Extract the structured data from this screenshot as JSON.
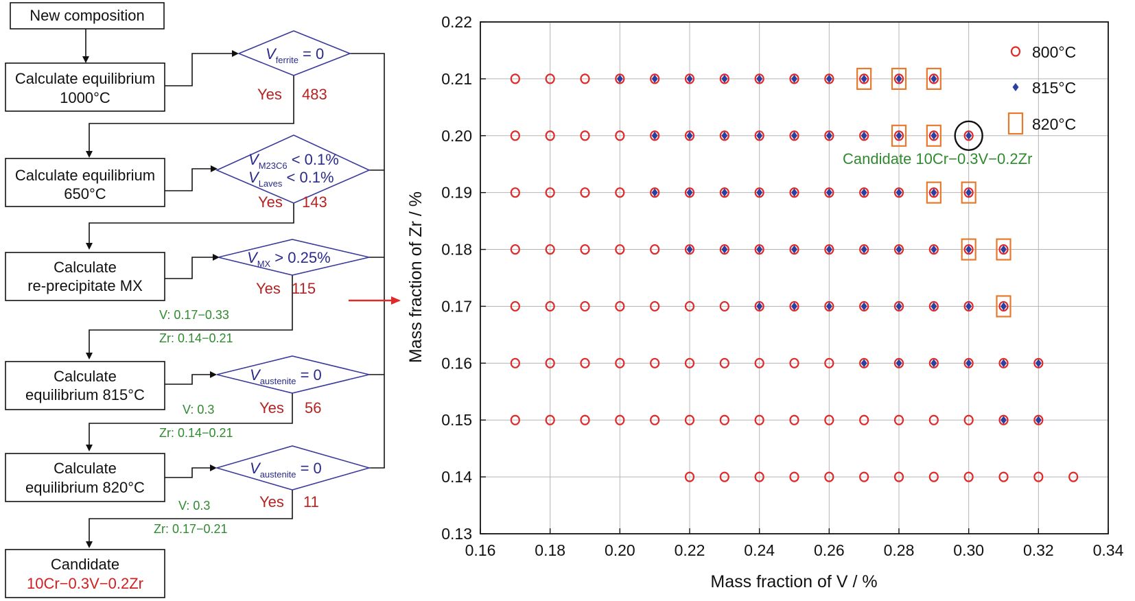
{
  "flowchart": {
    "start": "New composition",
    "steps": [
      {
        "lines": [
          "Calculate equilibrium",
          "1000°C"
        ]
      },
      {
        "lines": [
          "Calculate equilibrium",
          "650°C"
        ]
      },
      {
        "lines": [
          "Calculate",
          "re-precipitate MX"
        ]
      },
      {
        "lines": [
          "Calculate",
          "equilibrium 815°C"
        ]
      },
      {
        "lines": [
          "Calculate",
          "equilibrium 820°C"
        ]
      }
    ],
    "decisions": [
      {
        "var": "V",
        "sub": "ferrite",
        "cond": " = 0",
        "yes": "Yes",
        "count": "483"
      },
      {
        "var": "V",
        "sub": "M23C6",
        "cond": " < 0.1%",
        "var2": "V",
        "sub2": "Laves",
        "cond2": " < 0.1%",
        "yes": "Yes",
        "count": "143"
      },
      {
        "var": "V",
        "sub": "MX",
        "cond": " > 0.25%",
        "yes": "Yes",
        "count": "115"
      },
      {
        "var": "V",
        "sub": "austenite",
        "cond": " = 0",
        "yes": "Yes",
        "count": "56"
      },
      {
        "var": "V",
        "sub": "austenite",
        "cond": " = 0",
        "yes": "Yes",
        "count": "11"
      }
    ],
    "ranges": [
      {
        "v": "V: 0.17−0.33",
        "zr": "Zr: 0.14−0.21"
      },
      {
        "v": "V: 0.3",
        "zr": "Zr: 0.14−0.21"
      },
      {
        "v": "V: 0.3",
        "zr": "Zr: 0.17−0.21"
      }
    ],
    "candidate": {
      "label": "Candidate",
      "composition": "10Cr−0.3V−0.2Zr"
    }
  },
  "chart_data": {
    "type": "scatter",
    "xlabel": "Mass fraction of V / %",
    "ylabel": "Mass fraction of Zr / %",
    "xlim": [
      0.16,
      0.34
    ],
    "ylim": [
      0.13,
      0.22
    ],
    "xticks": [
      "0.16",
      "0.18",
      "0.20",
      "0.22",
      "0.24",
      "0.26",
      "0.28",
      "0.30",
      "0.32",
      "0.34"
    ],
    "yticks": [
      "0.13",
      "0.14",
      "0.15",
      "0.16",
      "0.17",
      "0.18",
      "0.19",
      "0.20",
      "0.21",
      "0.22"
    ],
    "grid": true,
    "legend_position": "top-right",
    "colors": {
      "c800": "#e02a2a",
      "c815": "#2a3f9e",
      "c820": "#e8782a",
      "candidate": "#111111"
    },
    "series": [
      {
        "name": "800°C",
        "marker": "circle",
        "points": [
          [
            0.17,
            0.21
          ],
          [
            0.18,
            0.21
          ],
          [
            0.19,
            0.21
          ],
          [
            0.2,
            0.21
          ],
          [
            0.21,
            0.21
          ],
          [
            0.22,
            0.21
          ],
          [
            0.23,
            0.21
          ],
          [
            0.24,
            0.21
          ],
          [
            0.25,
            0.21
          ],
          [
            0.26,
            0.21
          ],
          [
            0.27,
            0.21
          ],
          [
            0.28,
            0.21
          ],
          [
            0.29,
            0.21
          ],
          [
            0.17,
            0.2
          ],
          [
            0.18,
            0.2
          ],
          [
            0.19,
            0.2
          ],
          [
            0.2,
            0.2
          ],
          [
            0.21,
            0.2
          ],
          [
            0.22,
            0.2
          ],
          [
            0.23,
            0.2
          ],
          [
            0.24,
            0.2
          ],
          [
            0.25,
            0.2
          ],
          [
            0.26,
            0.2
          ],
          [
            0.27,
            0.2
          ],
          [
            0.28,
            0.2
          ],
          [
            0.29,
            0.2
          ],
          [
            0.3,
            0.2
          ],
          [
            0.17,
            0.19
          ],
          [
            0.18,
            0.19
          ],
          [
            0.19,
            0.19
          ],
          [
            0.2,
            0.19
          ],
          [
            0.21,
            0.19
          ],
          [
            0.22,
            0.19
          ],
          [
            0.23,
            0.19
          ],
          [
            0.24,
            0.19
          ],
          [
            0.25,
            0.19
          ],
          [
            0.26,
            0.19
          ],
          [
            0.27,
            0.19
          ],
          [
            0.28,
            0.19
          ],
          [
            0.29,
            0.19
          ],
          [
            0.3,
            0.19
          ],
          [
            0.17,
            0.18
          ],
          [
            0.18,
            0.18
          ],
          [
            0.19,
            0.18
          ],
          [
            0.2,
            0.18
          ],
          [
            0.21,
            0.18
          ],
          [
            0.22,
            0.18
          ],
          [
            0.23,
            0.18
          ],
          [
            0.24,
            0.18
          ],
          [
            0.25,
            0.18
          ],
          [
            0.26,
            0.18
          ],
          [
            0.27,
            0.18
          ],
          [
            0.28,
            0.18
          ],
          [
            0.29,
            0.18
          ],
          [
            0.3,
            0.18
          ],
          [
            0.31,
            0.18
          ],
          [
            0.17,
            0.17
          ],
          [
            0.18,
            0.17
          ],
          [
            0.19,
            0.17
          ],
          [
            0.2,
            0.17
          ],
          [
            0.21,
            0.17
          ],
          [
            0.22,
            0.17
          ],
          [
            0.23,
            0.17
          ],
          [
            0.24,
            0.17
          ],
          [
            0.25,
            0.17
          ],
          [
            0.26,
            0.17
          ],
          [
            0.27,
            0.17
          ],
          [
            0.28,
            0.17
          ],
          [
            0.29,
            0.17
          ],
          [
            0.3,
            0.17
          ],
          [
            0.31,
            0.17
          ],
          [
            0.17,
            0.16
          ],
          [
            0.18,
            0.16
          ],
          [
            0.19,
            0.16
          ],
          [
            0.2,
            0.16
          ],
          [
            0.21,
            0.16
          ],
          [
            0.22,
            0.16
          ],
          [
            0.23,
            0.16
          ],
          [
            0.24,
            0.16
          ],
          [
            0.25,
            0.16
          ],
          [
            0.26,
            0.16
          ],
          [
            0.27,
            0.16
          ],
          [
            0.28,
            0.16
          ],
          [
            0.29,
            0.16
          ],
          [
            0.3,
            0.16
          ],
          [
            0.31,
            0.16
          ],
          [
            0.32,
            0.16
          ],
          [
            0.17,
            0.15
          ],
          [
            0.18,
            0.15
          ],
          [
            0.19,
            0.15
          ],
          [
            0.2,
            0.15
          ],
          [
            0.21,
            0.15
          ],
          [
            0.22,
            0.15
          ],
          [
            0.23,
            0.15
          ],
          [
            0.24,
            0.15
          ],
          [
            0.25,
            0.15
          ],
          [
            0.26,
            0.15
          ],
          [
            0.27,
            0.15
          ],
          [
            0.28,
            0.15
          ],
          [
            0.29,
            0.15
          ],
          [
            0.3,
            0.15
          ],
          [
            0.31,
            0.15
          ],
          [
            0.32,
            0.15
          ],
          [
            0.22,
            0.14
          ],
          [
            0.23,
            0.14
          ],
          [
            0.24,
            0.14
          ],
          [
            0.25,
            0.14
          ],
          [
            0.26,
            0.14
          ],
          [
            0.27,
            0.14
          ],
          [
            0.28,
            0.14
          ],
          [
            0.29,
            0.14
          ],
          [
            0.3,
            0.14
          ],
          [
            0.31,
            0.14
          ],
          [
            0.32,
            0.14
          ],
          [
            0.33,
            0.14
          ]
        ]
      },
      {
        "name": "815°C",
        "marker": "diamond",
        "points": [
          [
            0.2,
            0.21
          ],
          [
            0.21,
            0.21
          ],
          [
            0.22,
            0.21
          ],
          [
            0.23,
            0.21
          ],
          [
            0.24,
            0.21
          ],
          [
            0.25,
            0.21
          ],
          [
            0.26,
            0.21
          ],
          [
            0.27,
            0.21
          ],
          [
            0.28,
            0.21
          ],
          [
            0.29,
            0.21
          ],
          [
            0.21,
            0.2
          ],
          [
            0.22,
            0.2
          ],
          [
            0.23,
            0.2
          ],
          [
            0.24,
            0.2
          ],
          [
            0.25,
            0.2
          ],
          [
            0.26,
            0.2
          ],
          [
            0.27,
            0.2
          ],
          [
            0.28,
            0.2
          ],
          [
            0.29,
            0.2
          ],
          [
            0.3,
            0.2
          ],
          [
            0.21,
            0.19
          ],
          [
            0.22,
            0.19
          ],
          [
            0.23,
            0.19
          ],
          [
            0.24,
            0.19
          ],
          [
            0.25,
            0.19
          ],
          [
            0.26,
            0.19
          ],
          [
            0.27,
            0.19
          ],
          [
            0.28,
            0.19
          ],
          [
            0.29,
            0.19
          ],
          [
            0.3,
            0.19
          ],
          [
            0.22,
            0.18
          ],
          [
            0.23,
            0.18
          ],
          [
            0.24,
            0.18
          ],
          [
            0.25,
            0.18
          ],
          [
            0.26,
            0.18
          ],
          [
            0.27,
            0.18
          ],
          [
            0.28,
            0.18
          ],
          [
            0.29,
            0.18
          ],
          [
            0.3,
            0.18
          ],
          [
            0.31,
            0.18
          ],
          [
            0.24,
            0.17
          ],
          [
            0.25,
            0.17
          ],
          [
            0.26,
            0.17
          ],
          [
            0.27,
            0.17
          ],
          [
            0.28,
            0.17
          ],
          [
            0.29,
            0.17
          ],
          [
            0.3,
            0.17
          ],
          [
            0.31,
            0.17
          ],
          [
            0.27,
            0.16
          ],
          [
            0.28,
            0.16
          ],
          [
            0.29,
            0.16
          ],
          [
            0.3,
            0.16
          ],
          [
            0.31,
            0.16
          ],
          [
            0.32,
            0.16
          ],
          [
            0.31,
            0.15
          ],
          [
            0.32,
            0.15
          ]
        ]
      },
      {
        "name": "820°C",
        "marker": "square",
        "points": [
          [
            0.27,
            0.21
          ],
          [
            0.28,
            0.21
          ],
          [
            0.29,
            0.21
          ],
          [
            0.28,
            0.2
          ],
          [
            0.29,
            0.2
          ],
          [
            0.29,
            0.19
          ],
          [
            0.3,
            0.19
          ],
          [
            0.3,
            0.18
          ],
          [
            0.31,
            0.18
          ],
          [
            0.31,
            0.17
          ]
        ]
      }
    ],
    "highlight": {
      "x": 0.3,
      "y": 0.2,
      "marker": "circle"
    },
    "annotation": "Candidate 10Cr−0.3V−0.2Zr"
  }
}
